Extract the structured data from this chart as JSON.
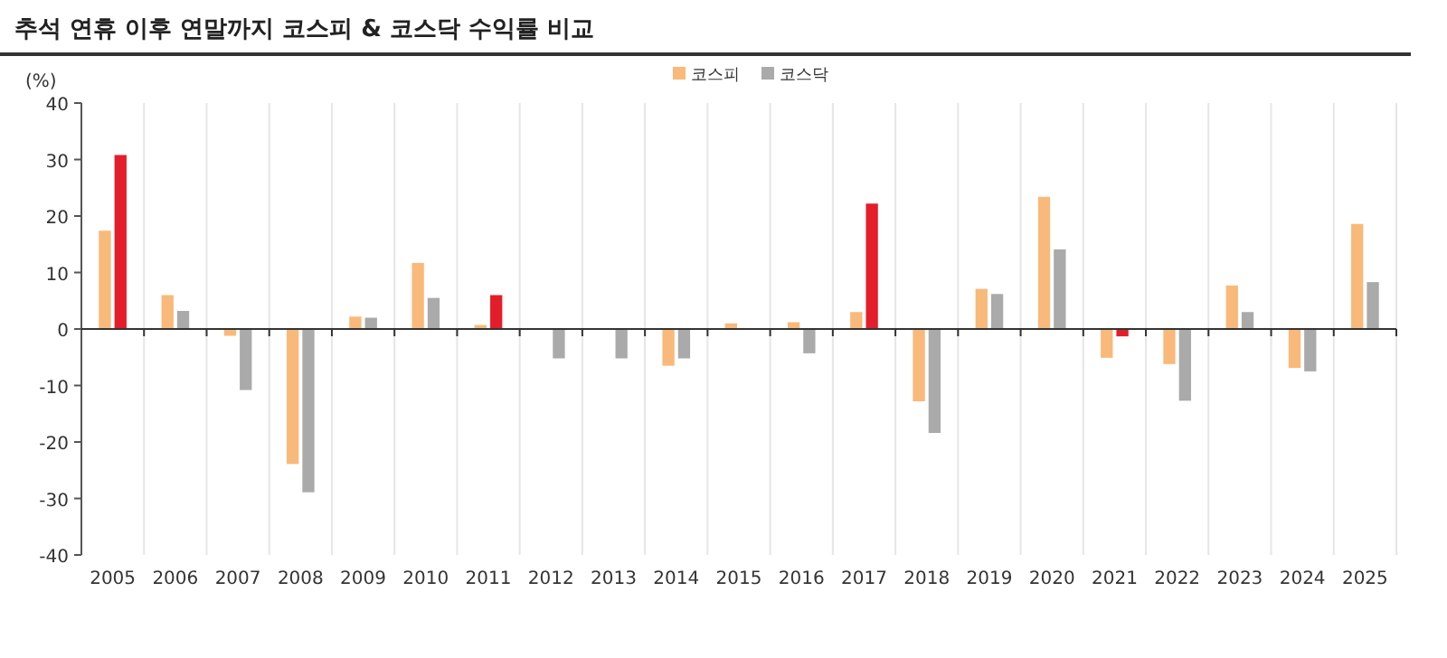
{
  "chart_data": {
    "type": "bar",
    "title": "추석 연휴 이후 연말까지 코스피 & 코스닥 수익률 비교",
    "ylabel": "(%)",
    "categories": [
      "2005",
      "2006",
      "2007",
      "2008",
      "2009",
      "2010",
      "2011",
      "2012",
      "2013",
      "2014",
      "2015",
      "2016",
      "2017",
      "2018",
      "2019",
      "2020",
      "2021",
      "2022",
      "2023",
      "2024",
      "2025"
    ],
    "series": [
      {
        "name": "코스피",
        "color": "#f9b97a",
        "values": [
          17.4,
          6.0,
          -1.2,
          -23.9,
          2.2,
          11.7,
          0.7,
          0,
          0,
          -6.5,
          1.0,
          1.2,
          3.0,
          -12.8,
          7.1,
          23.4,
          -5.1,
          -6.2,
          7.7,
          -6.9,
          18.6
        ]
      },
      {
        "name": "코스닥",
        "color": "#aaaaaa",
        "colors": [
          "#e31e2a",
          "#aaaaaa",
          "#aaaaaa",
          "#aaaaaa",
          "#aaaaaa",
          "#aaaaaa",
          "#e31e2a",
          "#aaaaaa",
          "#aaaaaa",
          "#aaaaaa",
          "#aaaaaa",
          "#aaaaaa",
          "#e31e2a",
          "#aaaaaa",
          "#aaaaaa",
          "#aaaaaa",
          "#e31e2a",
          "#aaaaaa",
          "#aaaaaa",
          "#aaaaaa",
          "#aaaaaa"
        ],
        "values": [
          30.8,
          3.2,
          -10.8,
          -28.9,
          2.0,
          5.5,
          6.0,
          -5.2,
          -5.2,
          -5.2,
          0,
          -4.3,
          22.2,
          -18.4,
          6.2,
          14.1,
          -1.3,
          -12.7,
          3.0,
          -7.5,
          8.3
        ]
      }
    ],
    "ylim": [
      -40,
      40
    ],
    "yticks": [
      -40,
      -30,
      -20,
      -10,
      0,
      10,
      20,
      30,
      40
    ],
    "grid": "x",
    "legend": "top"
  }
}
